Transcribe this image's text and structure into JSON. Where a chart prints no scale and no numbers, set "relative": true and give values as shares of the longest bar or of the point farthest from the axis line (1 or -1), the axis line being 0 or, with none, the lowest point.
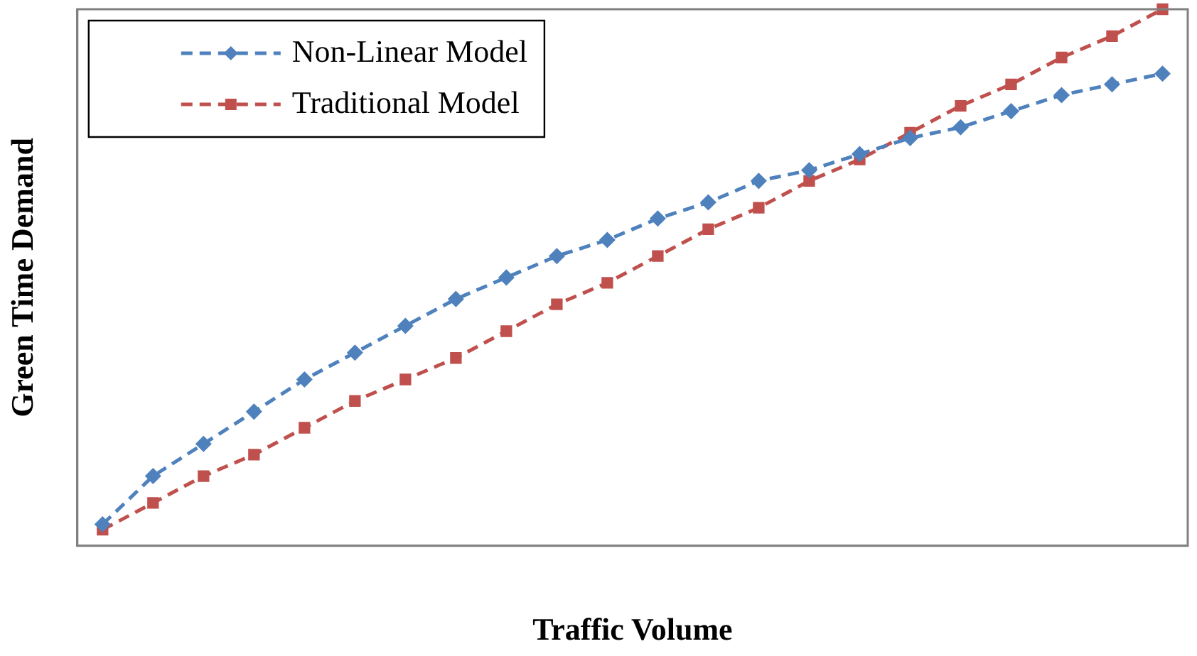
{
  "chart_data": {
    "type": "line",
    "relative": true,
    "xlabel": "Traffic Volume",
    "ylabel": "Green Time Demand",
    "legend": "top left",
    "grid": false,
    "categories": [
      null,
      null,
      null,
      null,
      null,
      null,
      null,
      null,
      null,
      null,
      null,
      null,
      null,
      null,
      null,
      null,
      null,
      null,
      null,
      null,
      null,
      null
    ],
    "series": [
      {
        "name": "Non-Linear Model",
        "color": "#4f81bd",
        "marker": "diamond",
        "line_style": "dashed",
        "values": [
          0.04,
          0.13,
          0.19,
          0.25,
          0.31,
          0.36,
          0.41,
          0.46,
          0.5,
          0.54,
          0.57,
          0.61,
          0.64,
          0.68,
          0.7,
          0.73,
          0.76,
          0.78,
          0.81,
          0.84,
          0.86,
          0.88
        ]
      },
      {
        "name": "Traditional Model",
        "color": "#c0504d",
        "marker": "square",
        "line_style": "dashed",
        "values": [
          0.03,
          0.08,
          0.13,
          0.17,
          0.22,
          0.27,
          0.31,
          0.35,
          0.4,
          0.45,
          0.49,
          0.54,
          0.59,
          0.63,
          0.68,
          0.72,
          0.77,
          0.82,
          0.86,
          0.91,
          0.95,
          1
        ]
      }
    ]
  }
}
